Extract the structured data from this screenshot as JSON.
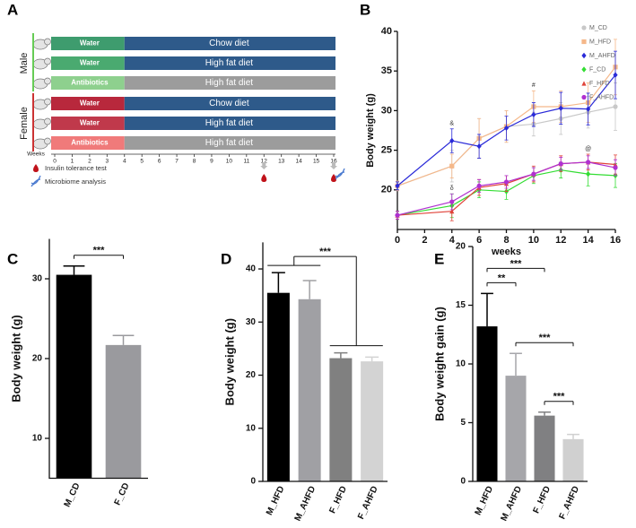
{
  "diagram": {
    "panel": "A",
    "groups": [
      {
        "label": "Male",
        "rows": [
          {
            "treatment": "Water",
            "diet": "Chow diet"
          },
          {
            "treatment": "Water",
            "diet": "High fat diet"
          },
          {
            "treatment": "Antibiotics",
            "diet": "High fat diet"
          }
        ]
      },
      {
        "label": "Female",
        "rows": [
          {
            "treatment": "Water",
            "diet": "Chow diet"
          },
          {
            "treatment": "Water",
            "diet": "High fat diet"
          },
          {
            "treatment": "Antibiotics",
            "diet": "High fat diet"
          }
        ]
      }
    ],
    "axis_label": "Weeks",
    "ticks": [
      0,
      1,
      2,
      3,
      4,
      5,
      6,
      7,
      8,
      9,
      10,
      11,
      12,
      13,
      14,
      15,
      16
    ],
    "legend": [
      "Insulin tolerance test",
      "Microbiome analysis"
    ]
  },
  "chart_data": [
    {
      "panel": "B",
      "type": "line",
      "x_label": "weeks",
      "y_label": "Body weight (g)",
      "x": [
        0,
        4,
        6,
        8,
        10,
        12,
        14,
        16
      ],
      "xlim": [
        0,
        16
      ],
      "xticks": [
        0,
        2,
        4,
        6,
        8,
        10,
        12,
        14,
        16
      ],
      "ylim": [
        15,
        40
      ],
      "yticks": [
        20,
        25,
        30,
        35,
        40
      ],
      "legend": "right",
      "series": [
        {
          "name": "M_CD",
          "color": "#c8c8c8",
          "marker": "circle",
          "values": [
            20.5,
            23,
            26.5,
            28,
            28.3,
            29,
            29.8,
            30.5
          ],
          "errors": [
            0.6,
            2,
            2.5,
            2,
            1.5,
            2,
            2,
            3
          ]
        },
        {
          "name": "M_HFD",
          "color": "#f5b88a",
          "marker": "square",
          "values": [
            20.5,
            23,
            26.5,
            28,
            30.5,
            30.5,
            31,
            35.5
          ],
          "errors": [
            0.6,
            1.5,
            2.5,
            2,
            2,
            2,
            2.5,
            3.5
          ]
        },
        {
          "name": "M_AHFD",
          "color": "#2a2ad8",
          "marker": "diamond",
          "values": [
            20.5,
            26.2,
            25.5,
            27.8,
            29.5,
            30.3,
            30.2,
            34.5
          ],
          "errors": [
            0.5,
            1.5,
            1.5,
            1.5,
            1.5,
            2,
            2,
            3
          ]
        },
        {
          "name": "F_CD",
          "color": "#33dd33",
          "marker": "diamond",
          "values": [
            16.8,
            18,
            20,
            19.8,
            21.8,
            22.5,
            22,
            21.8
          ],
          "errors": [
            0.5,
            1.5,
            1,
            1,
            1,
            1,
            1.5,
            1.5
          ]
        },
        {
          "name": "F_HFD",
          "color": "#e0443a",
          "marker": "triangle",
          "values": [
            16.8,
            17.3,
            20.3,
            20.8,
            22,
            23.3,
            23.5,
            23.2
          ],
          "errors": [
            0.5,
            1.2,
            1,
            1,
            1,
            1,
            1,
            1.2
          ]
        },
        {
          "name": "F_AHFD",
          "color": "#b030d0",
          "marker": "circle",
          "values": [
            16.8,
            18.5,
            20.5,
            21,
            22,
            23.3,
            23.5,
            22.8
          ],
          "errors": [
            0.5,
            1,
            0.8,
            0.8,
            0.8,
            0.8,
            0.8,
            1
          ]
        }
      ],
      "annotations": [
        {
          "text": "&",
          "x": 4,
          "series": "M_AHFD"
        },
        {
          "text": "δ",
          "x": 4,
          "series": "F_AHFD"
        },
        {
          "text": "#",
          "x": 10,
          "series": "M_HFD"
        },
        {
          "text": "@",
          "x": 14,
          "series": "F_HFD"
        }
      ]
    },
    {
      "panel": "C",
      "type": "bar",
      "y_label": "Body weight (g)",
      "categories": [
        "M_CD",
        "F_CD"
      ],
      "values": [
        30.5,
        21.7
      ],
      "errors": [
        1.1,
        1.2
      ],
      "colors": [
        "#000000",
        "#9a9a9e"
      ],
      "ylim": [
        5,
        35
      ],
      "yticks": [
        10,
        20,
        30
      ],
      "brackets": [
        {
          "label": "***",
          "left": [
            "M_CD"
          ],
          "right": [
            "F_CD"
          ]
        }
      ]
    },
    {
      "panel": "D",
      "type": "bar",
      "y_label": "Body weight (g)",
      "categories": [
        "M_HFD",
        "M_AHFD",
        "F_HFD",
        "F_AHFD"
      ],
      "values": [
        35.5,
        34.3,
        23.2,
        22.6
      ],
      "errors": [
        3.8,
        3.5,
        1.0,
        0.8
      ],
      "colors": [
        "#000000",
        "#a0a0a4",
        "#808080",
        "#d3d3d3"
      ],
      "ylim": [
        0,
        45
      ],
      "yticks": [
        0,
        10,
        20,
        30,
        40
      ],
      "brackets": [
        {
          "label": "***",
          "left": [
            "M_HFD",
            "M_AHFD"
          ],
          "right": [
            "F_HFD",
            "F_AHFD"
          ]
        }
      ]
    },
    {
      "panel": "E",
      "type": "bar",
      "y_label": "Body weight gain (g)",
      "categories": [
        "M_HFD",
        "M_AHFD",
        "F_HFD",
        "F_AHFD"
      ],
      "values": [
        13.2,
        9.0,
        5.6,
        3.6
      ],
      "errors": [
        2.8,
        1.9,
        0.3,
        0.4
      ],
      "colors": [
        "#000000",
        "#a6a6aa",
        "#808082",
        "#d0d0d0"
      ],
      "ylim": [
        0,
        20
      ],
      "yticks": [
        0,
        5,
        10,
        15,
        20
      ],
      "brackets": [
        {
          "label": "**",
          "left": [
            "M_HFD"
          ],
          "right": [
            "M_AHFD"
          ]
        },
        {
          "label": "***",
          "left": [
            "M_HFD"
          ],
          "right": [
            "F_HFD"
          ]
        },
        {
          "label": "***",
          "left": [
            "M_AHFD"
          ],
          "right": [
            "F_AHFD"
          ]
        },
        {
          "label": "***",
          "left": [
            "F_HFD"
          ],
          "right": [
            "F_AHFD"
          ]
        }
      ]
    }
  ]
}
